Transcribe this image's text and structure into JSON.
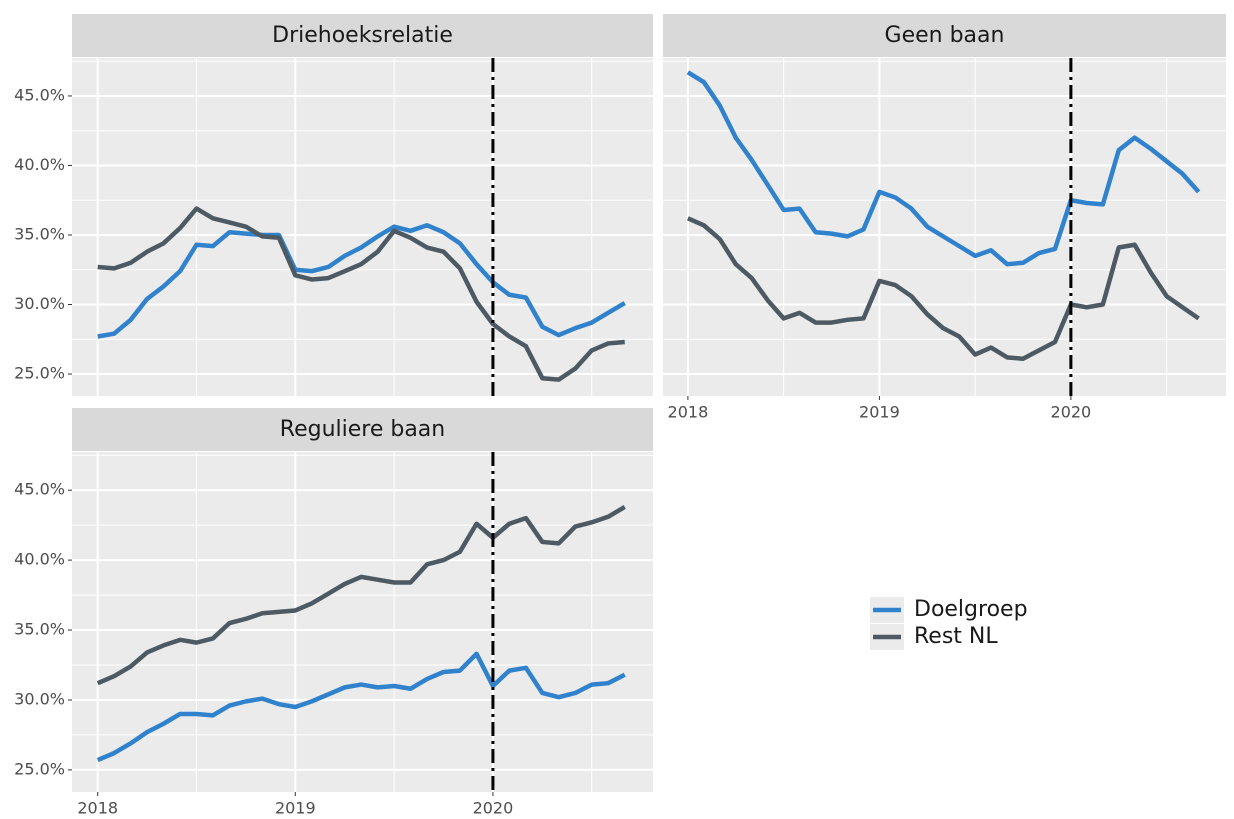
{
  "chart_data": [
    {
      "type": "line",
      "title": "Driehoeksrelatie",
      "x": [
        2018,
        2018.083,
        2018.167,
        2018.25,
        2018.333,
        2018.417,
        2018.5,
        2018.583,
        2018.667,
        2018.75,
        2018.833,
        2018.917,
        2019,
        2019.083,
        2019.167,
        2019.25,
        2019.333,
        2019.417,
        2019.5,
        2019.583,
        2019.667,
        2019.75,
        2019.833,
        2019.917,
        2020,
        2020.083,
        2020.167,
        2020.25,
        2020.333,
        2020.417,
        2020.5,
        2020.583,
        2020.667
      ],
      "series": [
        {
          "name": "Doelgroep",
          "color": "#3182cc",
          "values": [
            27.7,
            27.9,
            28.9,
            30.4,
            31.3,
            32.4,
            34.3,
            34.2,
            35.2,
            35.1,
            35.0,
            35.0,
            32.5,
            32.4,
            32.7,
            33.5,
            34.1,
            34.9,
            35.6,
            35.3,
            35.7,
            35.2,
            34.4,
            32.9,
            31.6,
            30.7,
            30.5,
            28.4,
            27.8,
            28.3,
            28.7,
            29.4,
            30.1
          ]
        },
        {
          "name": "Rest NL",
          "color": "#4d5a63",
          "values": [
            32.7,
            32.6,
            33.0,
            33.8,
            34.4,
            35.5,
            36.9,
            36.2,
            35.9,
            35.6,
            34.9,
            34.8,
            32.1,
            31.8,
            31.9,
            32.4,
            32.9,
            33.8,
            35.3,
            34.8,
            34.1,
            33.8,
            32.6,
            30.2,
            28.6,
            27.7,
            27.0,
            24.7,
            24.6,
            25.4,
            26.7,
            27.2,
            27.3
          ]
        }
      ],
      "xlim": [
        2017.87,
        2020.81
      ],
      "xticks": [
        2018,
        2019,
        2020
      ],
      "ylim": [
        23.42,
        47.73
      ],
      "yticks": [
        {
          "value": 25,
          "label": "25.0%"
        },
        {
          "value": 30,
          "label": "30.0%"
        },
        {
          "value": 35,
          "label": "35.0%"
        },
        {
          "value": 40,
          "label": "40.0%"
        },
        {
          "value": 45,
          "label": "45.0%"
        }
      ],
      "vline": 2020,
      "grid": true
    },
    {
      "type": "line",
      "title": "Geen baan",
      "x": [
        2018,
        2018.083,
        2018.167,
        2018.25,
        2018.333,
        2018.417,
        2018.5,
        2018.583,
        2018.667,
        2018.75,
        2018.833,
        2018.917,
        2019,
        2019.083,
        2019.167,
        2019.25,
        2019.333,
        2019.417,
        2019.5,
        2019.583,
        2019.667,
        2019.75,
        2019.833,
        2019.917,
        2020,
        2020.083,
        2020.167,
        2020.25,
        2020.333,
        2020.417,
        2020.5,
        2020.583,
        2020.667
      ],
      "series": [
        {
          "name": "Doelgroep",
          "color": "#3182cc",
          "values": [
            46.7,
            46.0,
            44.3,
            42.0,
            40.4,
            38.6,
            36.8,
            36.9,
            35.2,
            35.1,
            34.9,
            35.4,
            38.1,
            37.7,
            36.9,
            35.6,
            34.9,
            34.2,
            33.5,
            33.9,
            32.9,
            33.0,
            33.7,
            34.0,
            37.5,
            37.3,
            37.2,
            41.1,
            42.0,
            41.2,
            40.3,
            39.4,
            38.1
          ]
        },
        {
          "name": "Rest NL",
          "color": "#4d5a63",
          "values": [
            36.2,
            35.7,
            34.7,
            32.9,
            31.9,
            30.3,
            29.0,
            29.4,
            28.7,
            28.7,
            28.9,
            29.0,
            31.7,
            31.4,
            30.6,
            29.3,
            28.3,
            27.7,
            26.4,
            26.9,
            26.2,
            26.1,
            26.7,
            27.3,
            30.0,
            29.8,
            30.0,
            34.1,
            34.3,
            32.3,
            30.6,
            29.8,
            29.0
          ]
        }
      ],
      "xlim": [
        2017.87,
        2020.81
      ],
      "xticks": [
        2018,
        2019,
        2020
      ],
      "ylim": [
        23.42,
        47.73
      ],
      "yticks": [
        {
          "value": 25,
          "label": "25.0%"
        },
        {
          "value": 30,
          "label": "30.0%"
        },
        {
          "value": 35,
          "label": "35.0%"
        },
        {
          "value": 40,
          "label": "40.0%"
        },
        {
          "value": 45,
          "label": "45.0%"
        }
      ],
      "vline": 2020,
      "grid": true
    },
    {
      "type": "line",
      "title": "Reguliere baan",
      "x": [
        2018,
        2018.083,
        2018.167,
        2018.25,
        2018.333,
        2018.417,
        2018.5,
        2018.583,
        2018.667,
        2018.75,
        2018.833,
        2018.917,
        2019,
        2019.083,
        2019.167,
        2019.25,
        2019.333,
        2019.417,
        2019.5,
        2019.583,
        2019.667,
        2019.75,
        2019.833,
        2019.917,
        2020,
        2020.083,
        2020.167,
        2020.25,
        2020.333,
        2020.417,
        2020.5,
        2020.583,
        2020.667
      ],
      "series": [
        {
          "name": "Doelgroep",
          "color": "#3182cc",
          "values": [
            25.7,
            26.2,
            26.9,
            27.7,
            28.3,
            29.0,
            29.0,
            28.9,
            29.6,
            29.9,
            30.1,
            29.7,
            29.5,
            29.9,
            30.4,
            30.9,
            31.1,
            30.9,
            31.0,
            30.8,
            31.5,
            32.0,
            32.1,
            33.3,
            31.0,
            32.1,
            32.3,
            30.5,
            30.2,
            30.5,
            31.1,
            31.2,
            31.8
          ]
        },
        {
          "name": "Rest NL",
          "color": "#4d5a63",
          "values": [
            31.2,
            31.7,
            32.4,
            33.4,
            33.9,
            34.3,
            34.1,
            34.4,
            35.5,
            35.8,
            36.2,
            36.3,
            36.4,
            36.9,
            37.6,
            38.3,
            38.8,
            38.6,
            38.4,
            38.4,
            39.7,
            40.0,
            40.6,
            42.6,
            41.6,
            42.6,
            43.0,
            41.3,
            41.2,
            42.4,
            42.7,
            43.1,
            43.8
          ]
        }
      ],
      "xlim": [
        2017.87,
        2020.81
      ],
      "xticks": [
        2018,
        2019,
        2020
      ],
      "ylim": [
        23.42,
        47.73
      ],
      "yticks": [
        {
          "value": 25,
          "label": "25.0%"
        },
        {
          "value": 30,
          "label": "30.0%"
        },
        {
          "value": 35,
          "label": "35.0%"
        },
        {
          "value": 40,
          "label": "40.0%"
        },
        {
          "value": 45,
          "label": "45.0%"
        }
      ],
      "vline": 2020,
      "grid": true
    }
  ]
}
